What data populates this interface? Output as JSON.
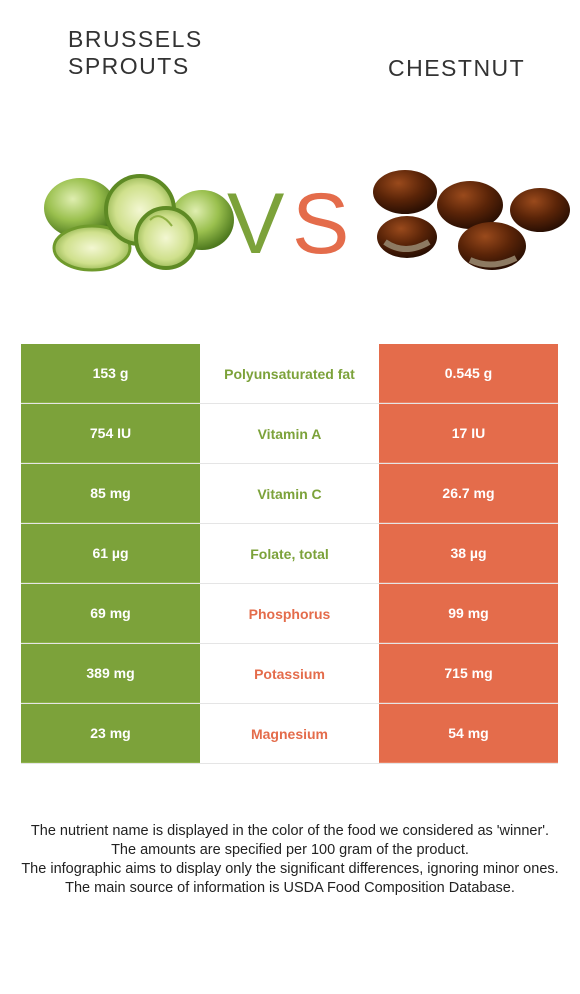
{
  "left_food": {
    "title_line1": "BRUSSELS",
    "title_line2": "SPROUTS",
    "color": "#7ca23a"
  },
  "right_food": {
    "title": "CHESTNUT",
    "color": "#e46c4b"
  },
  "vs": {
    "v": "V",
    "s": "S"
  },
  "rows": [
    {
      "left": "153 g",
      "nutrient": "Polyunsaturated fat",
      "right": "0.545 g",
      "winner": "left"
    },
    {
      "left": "754 IU",
      "nutrient": "Vitamin A",
      "right": "17 IU",
      "winner": "left"
    },
    {
      "left": "85 mg",
      "nutrient": "Vitamin C",
      "right": "26.7 mg",
      "winner": "left"
    },
    {
      "left": "61 µg",
      "nutrient": "Folate, total",
      "right": "38 µg",
      "winner": "left"
    },
    {
      "left": "69 mg",
      "nutrient": "Phosphorus",
      "right": "99 mg",
      "winner": "right"
    },
    {
      "left": "389 mg",
      "nutrient": "Potassium",
      "right": "715 mg",
      "winner": "right"
    },
    {
      "left": "23 mg",
      "nutrient": "Magnesium",
      "right": "54 mg",
      "winner": "right"
    }
  ],
  "notes": [
    "The nutrient name is displayed in the color of the food we considered as 'winner'.",
    "The amounts are specified per 100 gram of the product.",
    "The infographic aims to display only the significant differences, ignoring minor ones.",
    "The main source of information is USDA Food Composition Database."
  ]
}
